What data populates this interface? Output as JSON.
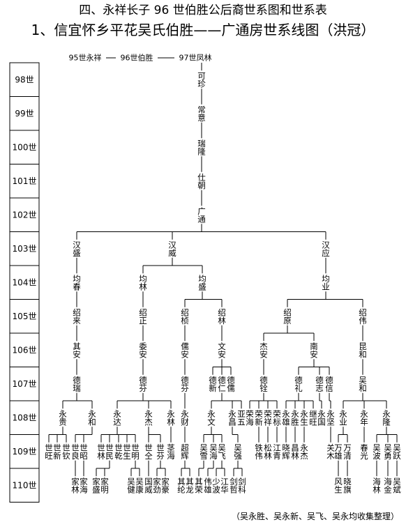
{
  "header": {
    "title": "四、永祥长子 96 世伯胜公后裔世系图和世系表",
    "subtitle": "1、信宜怀乡平花吴氏伯胜——广通房世系线图（洪冠）"
  },
  "ancestors": [
    "95世永祥",
    "96世伯胜",
    "97世凤林"
  ],
  "generations": [
    {
      "label": "98世",
      "members": [
        "可珍"
      ]
    },
    {
      "label": "99世",
      "members": [
        "常意"
      ]
    },
    {
      "label": "100世",
      "members": [
        "瑞隆"
      ]
    },
    {
      "label": "101世",
      "members": [
        "仕朝"
      ]
    },
    {
      "label": "102世",
      "members": [
        "广通"
      ]
    },
    {
      "label": "103世",
      "members": [
        "汉盛",
        "汉威",
        "汉应"
      ]
    },
    {
      "label": "104世",
      "members": [
        "均春",
        "均林",
        "均盛",
        "均业"
      ]
    },
    {
      "label": "105世",
      "members": [
        "绍来",
        "绍正",
        "绍桢",
        "绍林",
        "绍原",
        "绍伟"
      ]
    },
    {
      "label": "106世",
      "members": [
        "其安",
        "委安",
        "儒安",
        "文安",
        "杰安",
        "南安",
        "昆和"
      ]
    },
    {
      "label": "107世",
      "members": [
        "德瑞",
        "德芬",
        "德芬",
        "德新",
        "德仁",
        "德儒",
        "德铨",
        "德礼",
        "德志",
        "德信",
        "吴和"
      ]
    },
    {
      "label": "108世",
      "members": [
        "永贵",
        "永和",
        "永达",
        "永杰",
        "永林",
        "永财",
        "永文",
        "永昌",
        "亚五",
        "荣海",
        "荣新",
        "荣祥",
        "荣标",
        "永雄",
        "永胜",
        "永生",
        "继旺",
        "永国",
        "永坚",
        "永业",
        "永年",
        "永隆"
      ]
    },
    {
      "label": "109世",
      "members": [
        "世旺",
        "世新",
        "世钦",
        "世良",
        "世昭",
        "世林",
        "世民",
        "世乾",
        "世生",
        "世明",
        "世仝",
        "世芬",
        "茎海",
        "超辉",
        "吴雪",
        "吴海",
        "吴飞",
        "吴强",
        "铁伟",
        "松林",
        "江青",
        "晓辉",
        "昌林",
        "永杰",
        "关木",
        "万雄",
        "万清",
        "春光",
        "吴波",
        "吴勇",
        "吴跃"
      ]
    },
    {
      "label": "110世",
      "members": [
        "家林",
        "家海",
        "家盛",
        "家明",
        "吴健",
        "吴康",
        "国威",
        "家劲",
        "家豪",
        "其纶",
        "其龙",
        "其荣",
        "伟雄",
        "少波",
        "江华",
        "剑哲",
        "剑科",
        "风生",
        "晓旗",
        "海林",
        "海金",
        "吴斌"
      ]
    }
  ],
  "footer": "（吴永胜、吴永新、吴飞、吴永均收集整理）"
}
